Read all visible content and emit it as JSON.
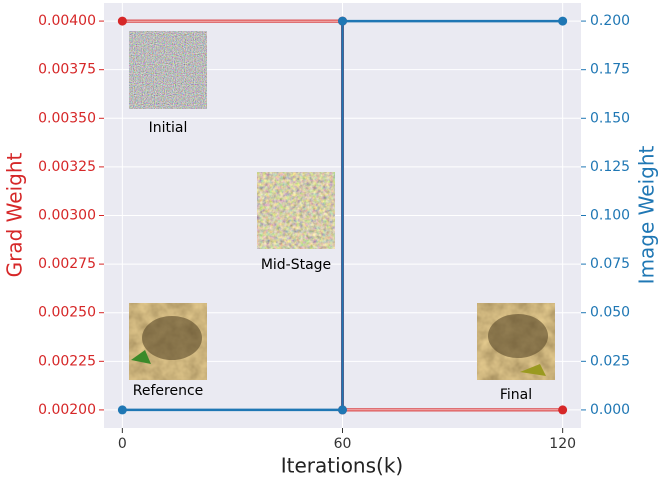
{
  "chart_data": {
    "type": "line",
    "xlabel": "Iterations(k)",
    "ylabel": "Grad Weight",
    "y2label": "Image Weight",
    "xlim": [
      -5,
      125
    ],
    "xticks": [
      0,
      60,
      120
    ],
    "ylim": [
      0.001907,
      0.004093
    ],
    "yticks": [
      {
        "value": 0.002,
        "label": "0.00200"
      },
      0.00225,
      {
        "value": 0.0025,
        "label": "0.00250"
      },
      0.00275,
      {
        "value": 0.003,
        "label": "0.00300"
      },
      0.00325,
      {
        "value": 0.0035,
        "label": "0.00350"
      },
      0.00375,
      {
        "value": 0.004,
        "label": "0.00400"
      }
    ],
    "y2lim": [
      -0.0093,
      0.2093
    ],
    "y2ticks": [
      {
        "value": 0,
        "label": "0.000"
      },
      0.025,
      {
        "value": 0.05,
        "label": "0.050"
      },
      0.075,
      {
        "value": 0.1,
        "label": "0.100"
      },
      0.125,
      {
        "value": 0.15,
        "label": "0.150"
      },
      0.175,
      {
        "value": 0.2,
        "label": "0.200"
      }
    ],
    "grid": true,
    "series": [
      {
        "name": "Grad Weight",
        "color": "#d62728",
        "x": [
          0,
          60,
          60,
          120
        ],
        "values": [
          0.004,
          0.004,
          0.002,
          0.002
        ]
      },
      {
        "name": "Image Weight",
        "color": "#1f77b4",
        "axis": "y2",
        "x": [
          0,
          60,
          60,
          120
        ],
        "values": [
          0,
          0,
          0.2,
          0.2
        ]
      }
    ],
    "annotations": [
      "Initial",
      "Mid-Stage",
      "Reference",
      "Final"
    ]
  }
}
